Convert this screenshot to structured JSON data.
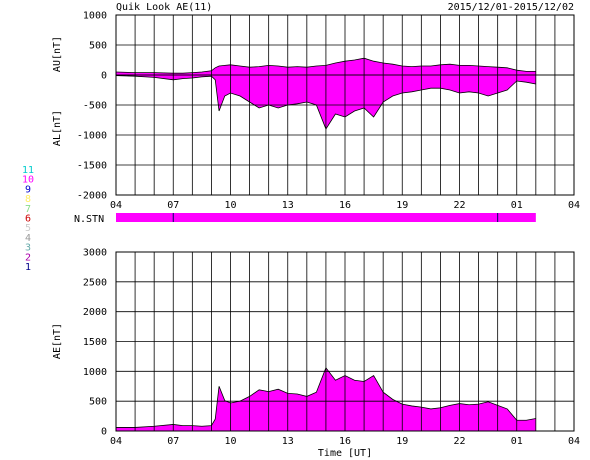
{
  "header": {
    "title": "Quik Look AE(11)",
    "date_range": "2015/12/01-2015/12/02"
  },
  "legend": {
    "stations": [
      {
        "label": "11",
        "color": "#00cccc"
      },
      {
        "label": "10",
        "color": "#ff00ff"
      },
      {
        "label": "9",
        "color": "#0000cc"
      },
      {
        "label": "8",
        "color": "#ffee66"
      },
      {
        "label": "7",
        "color": "#88dd88"
      },
      {
        "label": "6",
        "color": "#cc0000"
      },
      {
        "label": "5",
        "color": "#cccccc"
      },
      {
        "label": "4",
        "color": "#999999"
      },
      {
        "label": "3",
        "color": "#66aaaa"
      },
      {
        "label": "2",
        "color": "#aa00aa"
      },
      {
        "label": "1",
        "color": "#000088"
      }
    ]
  },
  "chart_data": [
    {
      "type": "area",
      "title": "",
      "ylabel_au": "AU[nT]",
      "ylabel_al": "AL[nT]",
      "ylim": [
        -2000,
        1000
      ],
      "yticks": [
        1000,
        500,
        0,
        -500,
        -1000,
        -1500,
        -2000
      ],
      "xticks": [
        "04",
        "07",
        "10",
        "13",
        "16",
        "19",
        "22",
        "01",
        "04"
      ],
      "x_hours": [
        4,
        5,
        6,
        7,
        7.5,
        8,
        8.5,
        9,
        9.2,
        9.4,
        9.7,
        10,
        10.5,
        11,
        11.5,
        12,
        12.5,
        13,
        13.5,
        14,
        14.5,
        15,
        15.5,
        16,
        16.5,
        17,
        17.5,
        18,
        18.5,
        19,
        19.5,
        20,
        20.5,
        21,
        21.5,
        22,
        22.5,
        23,
        23.5,
        24,
        24.5,
        25,
        25.5,
        26
      ],
      "au": [
        50,
        40,
        40,
        30,
        30,
        40,
        50,
        70,
        120,
        150,
        160,
        170,
        150,
        130,
        140,
        160,
        150,
        130,
        140,
        130,
        150,
        160,
        200,
        230,
        250,
        280,
        230,
        200,
        180,
        150,
        140,
        150,
        150,
        170,
        180,
        160,
        160,
        150,
        140,
        130,
        120,
        80,
        60,
        60
      ],
      "al": [
        -10,
        -20,
        -40,
        -80,
        -60,
        -50,
        -30,
        -20,
        -80,
        -600,
        -350,
        -300,
        -350,
        -450,
        -550,
        -500,
        -550,
        -500,
        -480,
        -450,
        -500,
        -900,
        -650,
        -700,
        -600,
        -550,
        -700,
        -450,
        -350,
        -300,
        -280,
        -250,
        -220,
        -220,
        -250,
        -300,
        -280,
        -300,
        -350,
        -300,
        -250,
        -100,
        -120,
        -150
      ]
    },
    {
      "type": "bar",
      "label": "N.STN",
      "value": 10,
      "markers_hours": [
        7,
        24
      ]
    },
    {
      "type": "area",
      "title": "",
      "ylabel": "AE[nT]",
      "xlabel": "Time [UT]",
      "ylim": [
        0,
        3000
      ],
      "yticks": [
        3000,
        2500,
        2000,
        1500,
        1000,
        500,
        0
      ],
      "xticks": [
        "04",
        "07",
        "10",
        "13",
        "16",
        "19",
        "22",
        "01",
        "04"
      ],
      "x_hours": [
        4,
        5,
        6,
        7,
        7.5,
        8,
        8.5,
        9,
        9.2,
        9.4,
        9.7,
        10,
        10.5,
        11,
        11.5,
        12,
        12.5,
        13,
        13.5,
        14,
        14.5,
        15,
        15.5,
        16,
        16.5,
        17,
        17.5,
        18,
        18.5,
        19,
        19.5,
        20,
        20.5,
        21,
        21.5,
        22,
        22.5,
        23,
        23.5,
        24,
        24.5,
        25,
        25.5,
        26
      ],
      "ae": [
        60,
        60,
        80,
        110,
        90,
        90,
        80,
        90,
        200,
        750,
        510,
        470,
        500,
        580,
        690,
        660,
        700,
        630,
        620,
        580,
        650,
        1060,
        850,
        930,
        850,
        830,
        930,
        650,
        530,
        450,
        420,
        400,
        370,
        390,
        430,
        460,
        440,
        450,
        490,
        430,
        370,
        180,
        180,
        210
      ]
    }
  ]
}
